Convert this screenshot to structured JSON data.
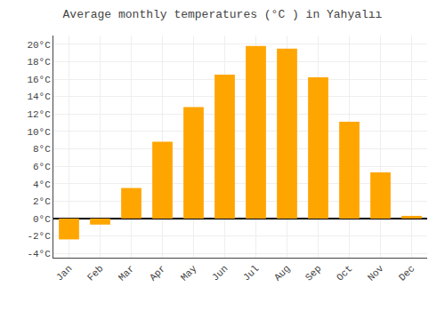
{
  "chart_data": {
    "type": "bar",
    "title": "Average monthly temperatures (°C ) in Yahyalıı",
    "categories": [
      "Jan",
      "Feb",
      "Mar",
      "Apr",
      "May",
      "Jun",
      "Jul",
      "Aug",
      "Sep",
      "Oct",
      "Nov",
      "Dec"
    ],
    "values": [
      -2.4,
      -0.7,
      3.5,
      8.8,
      12.8,
      16.5,
      19.8,
      19.5,
      16.2,
      11.1,
      5.3,
      0.3
    ],
    "color": "#FFA500",
    "ylim": [
      -4.5,
      21
    ],
    "yticks": [
      {
        "value": -4,
        "label": "-4°C"
      },
      {
        "value": -2,
        "label": "-2°C"
      },
      {
        "value": 0,
        "label": "0°C"
      },
      {
        "value": 2,
        "label": "2°C"
      },
      {
        "value": 4,
        "label": "4°C"
      },
      {
        "value": 6,
        "label": "6°C"
      },
      {
        "value": 8,
        "label": "8°C"
      },
      {
        "value": 10,
        "label": "10°C"
      },
      {
        "value": 12,
        "label": "12°C"
      },
      {
        "value": 14,
        "label": "14°C"
      },
      {
        "value": 16,
        "label": "16°C"
      },
      {
        "value": 18,
        "label": "18°C"
      },
      {
        "value": 20,
        "label": "20°C"
      }
    ],
    "grid": true
  }
}
